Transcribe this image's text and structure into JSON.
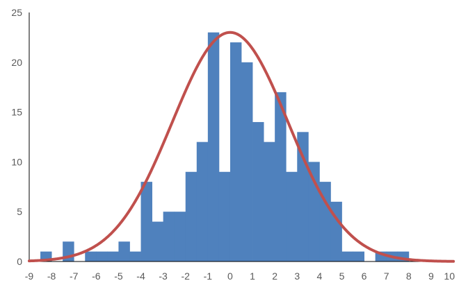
{
  "chart_data": {
    "type": "bar",
    "title": "",
    "xlabel": "",
    "ylabel": "",
    "xlim": [
      -9,
      10
    ],
    "ylim": [
      0,
      25
    ],
    "y_ticks": [
      0,
      5,
      10,
      15,
      20,
      25
    ],
    "x_ticks": [
      -9,
      -8,
      -7,
      -6,
      -5,
      -4,
      -3,
      -2,
      -1,
      0,
      1,
      2,
      3,
      4,
      5,
      6,
      7,
      8,
      9,
      10
    ],
    "grid": false,
    "legend": "none",
    "bin_width": 0.5,
    "bins": [
      {
        "x0": -9.0,
        "value": 0
      },
      {
        "x0": -8.5,
        "value": 1
      },
      {
        "x0": -8.0,
        "value": 0
      },
      {
        "x0": -7.5,
        "value": 2
      },
      {
        "x0": -7.0,
        "value": 0
      },
      {
        "x0": -6.5,
        "value": 1
      },
      {
        "x0": -6.0,
        "value": 1
      },
      {
        "x0": -5.5,
        "value": 1
      },
      {
        "x0": -5.0,
        "value": 2
      },
      {
        "x0": -4.5,
        "value": 1
      },
      {
        "x0": -4.0,
        "value": 8
      },
      {
        "x0": -3.5,
        "value": 4
      },
      {
        "x0": -3.0,
        "value": 5
      },
      {
        "x0": -2.5,
        "value": 5
      },
      {
        "x0": -2.0,
        "value": 9
      },
      {
        "x0": -1.5,
        "value": 12
      },
      {
        "x0": -1.0,
        "value": 23
      },
      {
        "x0": -0.5,
        "value": 9
      },
      {
        "x0": 0.0,
        "value": 22
      },
      {
        "x0": 0.5,
        "value": 20
      },
      {
        "x0": 1.0,
        "value": 14
      },
      {
        "x0": 1.5,
        "value": 12
      },
      {
        "x0": 2.0,
        "value": 17
      },
      {
        "x0": 2.5,
        "value": 9
      },
      {
        "x0": 3.0,
        "value": 13
      },
      {
        "x0": 3.5,
        "value": 10
      },
      {
        "x0": 4.0,
        "value": 8
      },
      {
        "x0": 4.5,
        "value": 6
      },
      {
        "x0": 5.0,
        "value": 1
      },
      {
        "x0": 5.5,
        "value": 1
      },
      {
        "x0": 6.0,
        "value": 0
      },
      {
        "x0": 6.5,
        "value": 1
      },
      {
        "x0": 7.0,
        "value": 1
      },
      {
        "x0": 7.5,
        "value": 1
      },
      {
        "x0": 8.0,
        "value": 0
      },
      {
        "x0": 8.5,
        "value": 0
      },
      {
        "x0": 9.0,
        "value": 0
      },
      {
        "x0": 9.5,
        "value": 0
      },
      {
        "x0": 10.0,
        "value": 1
      }
    ],
    "curve": {
      "type": "normal",
      "mean": 0,
      "peak": 23,
      "std_dev": 2.6
    },
    "colors": {
      "bars": "#4F81BD",
      "curve": "#C0504D",
      "axis": "#000000",
      "tick_labels": "#595959"
    }
  }
}
